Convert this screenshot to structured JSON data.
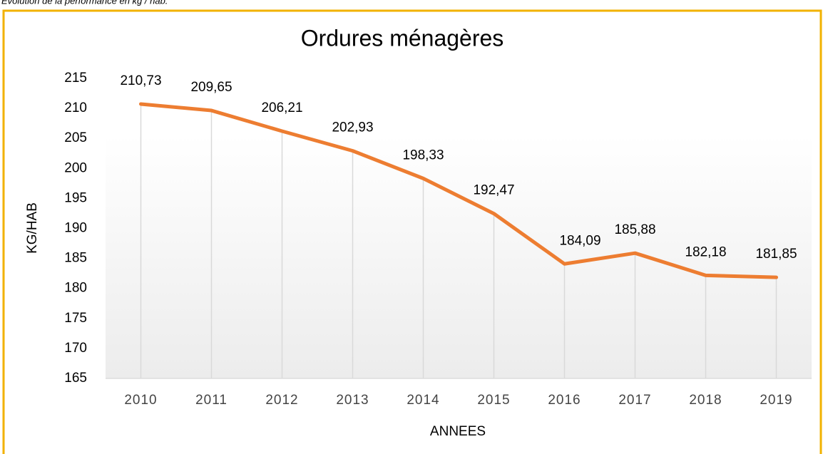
{
  "caption": "Evolution de la performance en kg / hab.",
  "chart_data": {
    "type": "line",
    "title": "Ordures ménagères",
    "x_label": "ANNEES",
    "y_label": "KG/HAB",
    "categories": [
      "2010",
      "2011",
      "2012",
      "2013",
      "2014",
      "2015",
      "2016",
      "2017",
      "2018",
      "2019"
    ],
    "series": [
      {
        "name": "Ordures ménagères",
        "color": "#ed7d31",
        "values": [
          210.73,
          209.65,
          206.21,
          202.93,
          198.33,
          192.47,
          184.09,
          185.88,
          182.18,
          181.85
        ],
        "value_labels": [
          "210,73",
          "209,65",
          "206,21",
          "202,93",
          "198,33",
          "192,47",
          "184,09",
          "185,88",
          "182,18",
          "181,85"
        ]
      }
    ],
    "ylim": [
      165,
      215
    ],
    "yticks": [
      165,
      170,
      175,
      180,
      185,
      190,
      195,
      200,
      205,
      210,
      215
    ]
  }
}
